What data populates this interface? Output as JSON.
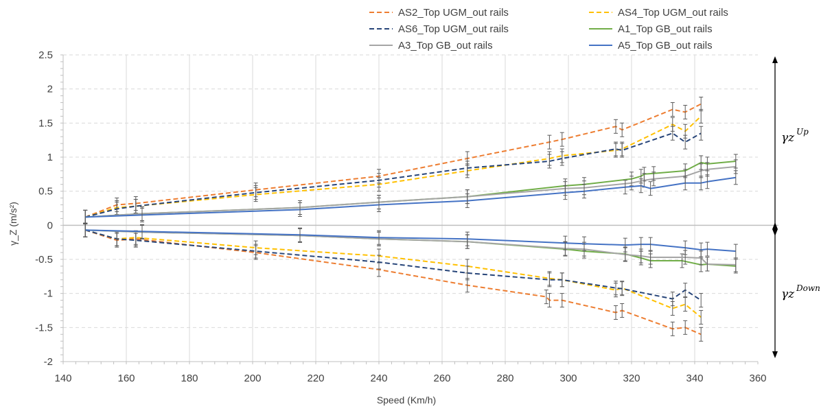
{
  "chart_data": {
    "type": "line",
    "title": "",
    "xlabel": "Speed (Km/h)",
    "ylabel": "γ_Z (m/s²)",
    "xlim": [
      140,
      360
    ],
    "ylim": [
      -2,
      2.5
    ],
    "x_ticks": [
      "140",
      "160",
      "180",
      "200",
      "220",
      "240",
      "260",
      "280",
      "300",
      "320",
      "340",
      "360"
    ],
    "y_ticks": [
      "-2",
      "-1.5",
      "-1",
      "-0.5",
      "0",
      "0.5",
      "1",
      "1.5",
      "2",
      "2.5"
    ],
    "grid": true,
    "legend": "top",
    "annotations": [
      {
        "id": "up",
        "base": "γz",
        "sup": "Up"
      },
      {
        "id": "down",
        "base": "γz",
        "sup": "Down"
      }
    ],
    "series": [
      {
        "name": "AS2_Top UGM_out rails",
        "color": "#ED7D31",
        "dash": true,
        "up": [
          [
            147,
            0.12
          ],
          [
            157,
            0.3
          ],
          [
            163,
            0.32
          ],
          [
            201,
            0.52
          ],
          [
            240,
            0.72
          ],
          [
            268,
            0.98
          ],
          [
            294,
            1.22
          ],
          [
            298,
            1.26
          ],
          [
            315,
            1.45
          ],
          [
            317,
            1.4
          ],
          [
            333,
            1.7
          ],
          [
            337,
            1.66
          ],
          [
            342,
            1.78
          ]
        ],
        "down": [
          [
            147,
            -0.07
          ],
          [
            157,
            -0.22
          ],
          [
            163,
            -0.2
          ],
          [
            201,
            -0.4
          ],
          [
            240,
            -0.65
          ],
          [
            268,
            -0.88
          ],
          [
            293,
            -1.05
          ],
          [
            294,
            -1.1
          ],
          [
            298,
            -1.1
          ],
          [
            315,
            -1.28
          ],
          [
            317,
            -1.25
          ],
          [
            333,
            -1.52
          ],
          [
            337,
            -1.5
          ],
          [
            342,
            -1.6
          ]
        ]
      },
      {
        "name": "AS4_Top UGM_out rails",
        "color": "#FFC000",
        "dash": true,
        "up": [
          [
            147,
            0.12
          ],
          [
            157,
            0.26
          ],
          [
            163,
            0.28
          ],
          [
            201,
            0.45
          ],
          [
            240,
            0.6
          ],
          [
            268,
            0.8
          ],
          [
            294,
            0.98
          ],
          [
            298,
            1.02
          ],
          [
            315,
            1.1
          ],
          [
            317,
            1.12
          ],
          [
            333,
            1.48
          ],
          [
            337,
            1.38
          ],
          [
            342,
            1.6
          ]
        ],
        "down": [
          [
            147,
            -0.07
          ],
          [
            157,
            -0.2
          ],
          [
            163,
            -0.18
          ],
          [
            201,
            -0.33
          ],
          [
            240,
            -0.45
          ],
          [
            268,
            -0.6
          ],
          [
            294,
            -0.78
          ],
          [
            298,
            -0.8
          ],
          [
            315,
            -0.95
          ],
          [
            317,
            -0.92
          ],
          [
            333,
            -1.22
          ],
          [
            337,
            -1.16
          ],
          [
            342,
            -1.35
          ]
        ]
      },
      {
        "name": "AS6_Top UGM_out rails",
        "color": "#264478",
        "dash": true,
        "up": [
          [
            147,
            0.12
          ],
          [
            157,
            0.24
          ],
          [
            163,
            0.28
          ],
          [
            201,
            0.48
          ],
          [
            240,
            0.66
          ],
          [
            268,
            0.84
          ],
          [
            294,
            0.94
          ],
          [
            298,
            0.98
          ],
          [
            315,
            1.12
          ],
          [
            317,
            1.1
          ],
          [
            333,
            1.35
          ],
          [
            337,
            1.22
          ],
          [
            342,
            1.35
          ]
        ],
        "down": [
          [
            147,
            -0.07
          ],
          [
            157,
            -0.2
          ],
          [
            163,
            -0.22
          ],
          [
            201,
            -0.38
          ],
          [
            240,
            -0.54
          ],
          [
            268,
            -0.7
          ],
          [
            294,
            -0.8
          ],
          [
            298,
            -0.8
          ],
          [
            315,
            -0.92
          ],
          [
            317,
            -0.93
          ],
          [
            333,
            -1.08
          ],
          [
            337,
            -0.95
          ],
          [
            342,
            -1.1
          ]
        ]
      },
      {
        "name": "A1_Top GB_out rails",
        "color": "#70AD47",
        "dash": false,
        "up": [
          [
            147,
            0.12
          ],
          [
            165,
            0.17
          ],
          [
            215,
            0.26
          ],
          [
            240,
            0.34
          ],
          [
            268,
            0.42
          ],
          [
            299,
            0.58
          ],
          [
            305,
            0.6
          ],
          [
            320,
            0.68
          ],
          [
            323,
            0.72
          ],
          [
            324,
            0.75
          ],
          [
            327,
            0.76
          ],
          [
            337,
            0.8
          ],
          [
            342,
            0.92
          ],
          [
            344,
            0.9
          ],
          [
            353,
            0.94
          ]
        ],
        "down": [
          [
            147,
            -0.07
          ],
          [
            165,
            -0.1
          ],
          [
            215,
            -0.15
          ],
          [
            240,
            -0.2
          ],
          [
            268,
            -0.24
          ],
          [
            299,
            -0.35
          ],
          [
            305,
            -0.38
          ],
          [
            318,
            -0.42
          ],
          [
            323,
            -0.48
          ],
          [
            326,
            -0.52
          ],
          [
            336,
            -0.52
          ],
          [
            342,
            -0.58
          ],
          [
            344,
            -0.57
          ],
          [
            353,
            -0.6
          ]
        ]
      },
      {
        "name": "A3_Top GB_out rails",
        "color": "#A5A5A5",
        "dash": false,
        "up": [
          [
            147,
            0.12
          ],
          [
            165,
            0.17
          ],
          [
            215,
            0.26
          ],
          [
            240,
            0.34
          ],
          [
            268,
            0.42
          ],
          [
            299,
            0.54
          ],
          [
            305,
            0.55
          ],
          [
            320,
            0.62
          ],
          [
            324,
            0.66
          ],
          [
            327,
            0.68
          ],
          [
            337,
            0.72
          ],
          [
            342,
            0.8
          ],
          [
            344,
            0.82
          ],
          [
            353,
            0.86
          ]
        ],
        "down": [
          [
            147,
            -0.07
          ],
          [
            165,
            -0.1
          ],
          [
            215,
            -0.15
          ],
          [
            240,
            -0.2
          ],
          [
            268,
            -0.24
          ],
          [
            299,
            -0.34
          ],
          [
            305,
            -0.35
          ],
          [
            318,
            -0.43
          ],
          [
            323,
            -0.45
          ],
          [
            326,
            -0.47
          ],
          [
            337,
            -0.47
          ],
          [
            342,
            -0.48
          ],
          [
            344,
            -0.57
          ],
          [
            353,
            -0.58
          ]
        ]
      },
      {
        "name": "A5_Top GB_out rails",
        "color": "#4472C4",
        "dash": false,
        "up": [
          [
            147,
            0.12
          ],
          [
            165,
            0.15
          ],
          [
            215,
            0.23
          ],
          [
            240,
            0.3
          ],
          [
            268,
            0.36
          ],
          [
            299,
            0.48
          ],
          [
            305,
            0.5
          ],
          [
            318,
            0.56
          ],
          [
            323,
            0.58
          ],
          [
            326,
            0.54
          ],
          [
            337,
            0.62
          ],
          [
            342,
            0.62
          ],
          [
            344,
            0.64
          ],
          [
            353,
            0.7
          ]
        ],
        "down": [
          [
            147,
            -0.07
          ],
          [
            165,
            -0.09
          ],
          [
            215,
            -0.14
          ],
          [
            240,
            -0.18
          ],
          [
            268,
            -0.2
          ],
          [
            299,
            -0.26
          ],
          [
            305,
            -0.27
          ],
          [
            318,
            -0.29
          ],
          [
            323,
            -0.28
          ],
          [
            326,
            -0.28
          ],
          [
            337,
            -0.33
          ],
          [
            342,
            -0.36
          ],
          [
            344,
            -0.35
          ],
          [
            353,
            -0.38
          ]
        ]
      }
    ]
  }
}
